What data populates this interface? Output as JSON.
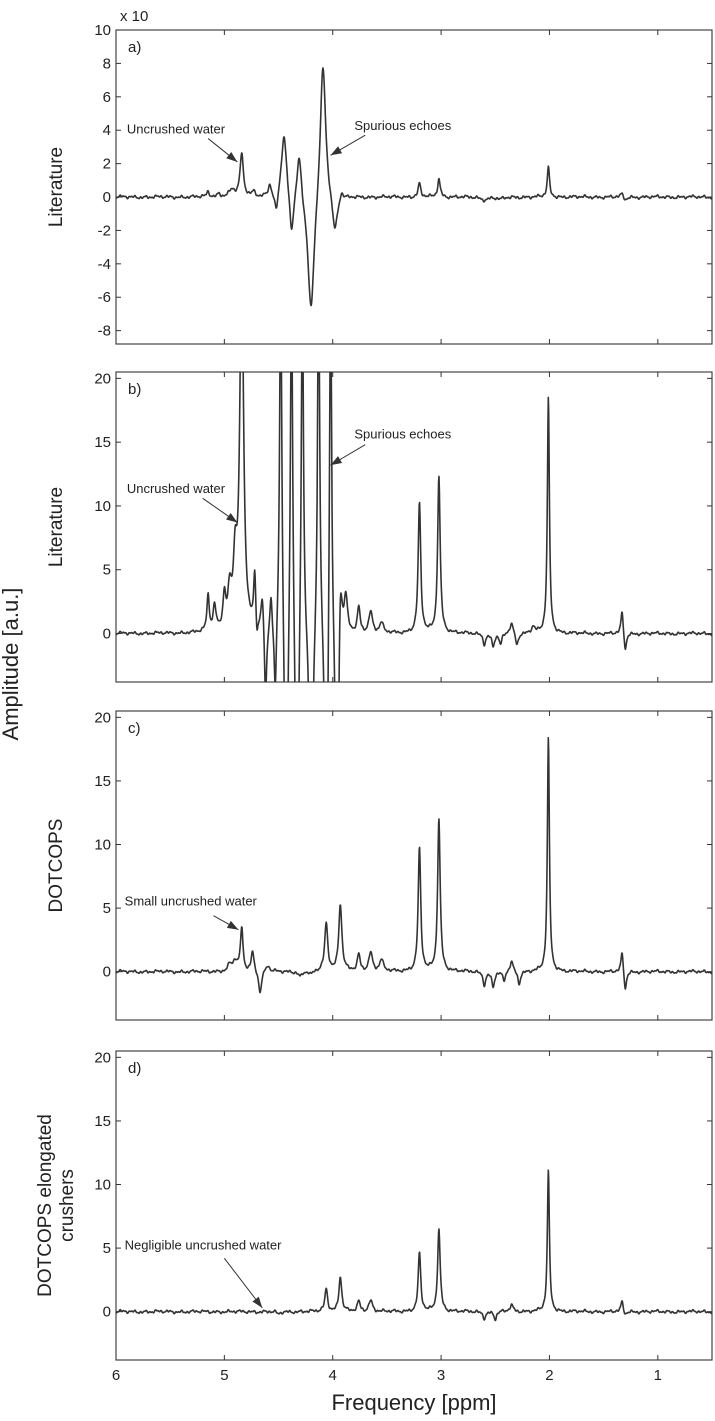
{
  "chart_data": {
    "type": "line",
    "xlabel": "Frequency [ppm]",
    "ylabel": "Amplitude [a.u.]",
    "x_reversed": true,
    "xlim": [
      6,
      0.5
    ],
    "xticks": [
      6,
      5,
      4,
      3,
      2,
      1
    ],
    "colors": {
      "trace": "#333333",
      "axes": "#333333"
    },
    "panels": [
      {
        "label": "a)",
        "ylabel": [
          "Literature"
        ],
        "ylim": [
          -8.8,
          10
        ],
        "yticks": [
          -8,
          -6,
          -4,
          -2,
          0,
          2,
          4,
          6,
          8,
          10
        ],
        "multiplier": "x 10",
        "peaks": [
          {
            "x": 5.15,
            "h": 0.3,
            "w": 0.015
          },
          {
            "x": 5.05,
            "h": 0.2,
            "w": 0.015
          },
          {
            "x": 4.84,
            "h": 2.6,
            "w": 0.018
          },
          {
            "x": 4.93,
            "h": 0.4,
            "w": 0.03
          },
          {
            "x": 4.73,
            "h": 0.3,
            "w": 0.02
          },
          {
            "x": 4.58,
            "h": 0.7,
            "w": 0.018
          },
          {
            "x": 4.52,
            "h": -1.3,
            "w": 0.02
          },
          {
            "x": 4.45,
            "h": 3.9,
            "w": 0.03
          },
          {
            "x": 4.38,
            "h": -2.6,
            "w": 0.022
          },
          {
            "x": 4.31,
            "h": 2.9,
            "w": 0.025
          },
          {
            "x": 4.2,
            "h": -7.3,
            "w": 0.035
          },
          {
            "x": 4.09,
            "h": 8.5,
            "w": 0.03
          },
          {
            "x": 3.98,
            "h": -2.3,
            "w": 0.03
          },
          {
            "x": 3.92,
            "h": 0.5,
            "w": 0.02
          },
          {
            "x": 3.2,
            "h": 0.8,
            "w": 0.014
          },
          {
            "x": 3.02,
            "h": 1.1,
            "w": 0.014
          },
          {
            "x": 2.01,
            "h": 1.8,
            "w": 0.012
          },
          {
            "x": 1.33,
            "h": 0.2,
            "w": 0.015
          },
          {
            "x": 1.3,
            "h": -0.2,
            "w": 0.015
          },
          {
            "x": 2.6,
            "h": -0.15,
            "w": 0.04
          },
          {
            "x": 2.45,
            "h": -0.12,
            "w": 0.04
          }
        ],
        "annotations": [
          {
            "text": "Uncrushed water",
            "text_at": [
              5.9,
              3.8
            ],
            "arrow_from": [
              5.15,
              3.5
            ],
            "arrow_to": [
              4.88,
              2.1
            ]
          },
          {
            "text": "Spurious echoes",
            "text_at": [
              3.8,
              4.0
            ],
            "arrow_from": [
              3.7,
              3.7
            ],
            "arrow_to": [
              4.02,
              2.5
            ]
          }
        ]
      },
      {
        "label": "b)",
        "ylabel": [
          "Literature"
        ],
        "ylim": [
          -3.8,
          20.5
        ],
        "yticks": [
          0,
          5,
          10,
          15,
          20
        ],
        "multiplier": "",
        "peaks": [
          {
            "x": 4.84,
            "h": 30,
            "w": 0.02
          },
          {
            "x": 4.9,
            "h": 5,
            "w": 0.02
          },
          {
            "x": 4.95,
            "h": 2.8,
            "w": 0.02
          },
          {
            "x": 5.15,
            "h": 2.8,
            "w": 0.013
          },
          {
            "x": 5.0,
            "h": 2.6,
            "w": 0.015
          },
          {
            "x": 5.09,
            "h": 2.0,
            "w": 0.015
          },
          {
            "x": 4.72,
            "h": 4.2,
            "w": 0.012
          },
          {
            "x": 4.65,
            "h": 3.0,
            "w": 0.015
          },
          {
            "x": 4.7,
            "h": -1.5,
            "w": 0.01
          },
          {
            "x": 4.62,
            "h": -6,
            "w": 0.012
          },
          {
            "x": 4.57,
            "h": 3.0,
            "w": 0.012
          },
          {
            "x": 4.53,
            "h": -6,
            "w": 0.012
          },
          {
            "x": 4.48,
            "h": 30,
            "w": 0.012
          },
          {
            "x": 4.43,
            "h": -30,
            "w": 0.012
          },
          {
            "x": 4.38,
            "h": 30,
            "w": 0.012
          },
          {
            "x": 4.33,
            "h": -30,
            "w": 0.012
          },
          {
            "x": 4.28,
            "h": 30,
            "w": 0.012
          },
          {
            "x": 4.2,
            "h": -30,
            "w": 0.012
          },
          {
            "x": 4.13,
            "h": 30,
            "w": 0.012
          },
          {
            "x": 4.06,
            "h": -30,
            "w": 0.012
          },
          {
            "x": 4.02,
            "h": 30,
            "w": 0.012
          },
          {
            "x": 3.96,
            "h": -30,
            "w": 0.012
          },
          {
            "x": 3.93,
            "h": 6.0,
            "w": 0.018
          },
          {
            "x": 3.88,
            "h": 3.0,
            "w": 0.02
          },
          {
            "x": 3.76,
            "h": 2.0,
            "w": 0.015
          },
          {
            "x": 3.65,
            "h": 1.7,
            "w": 0.02
          },
          {
            "x": 3.55,
            "h": 0.8,
            "w": 0.02
          },
          {
            "x": 3.2,
            "h": 10.2,
            "w": 0.014
          },
          {
            "x": 3.02,
            "h": 12.3,
            "w": 0.014
          },
          {
            "x": 2.01,
            "h": 18.5,
            "w": 0.011
          },
          {
            "x": 2.6,
            "h": -0.8,
            "w": 0.015
          },
          {
            "x": 2.52,
            "h": -1.0,
            "w": 0.015
          },
          {
            "x": 2.45,
            "h": -0.9,
            "w": 0.015
          },
          {
            "x": 2.35,
            "h": 0.8,
            "w": 0.02
          },
          {
            "x": 2.3,
            "h": -1.0,
            "w": 0.015
          },
          {
            "x": 2.15,
            "h": 0.5,
            "w": 0.02
          },
          {
            "x": 1.33,
            "h": 1.8,
            "w": 0.012
          },
          {
            "x": 1.3,
            "h": -1.5,
            "w": 0.012
          }
        ],
        "annotations": [
          {
            "text": "Uncrushed water",
            "text_at": [
              5.9,
              11.0
            ],
            "arrow_from": [
              5.2,
              10.6
            ],
            "arrow_to": [
              4.88,
              8.7
            ]
          },
          {
            "text": "Spurious echoes",
            "text_at": [
              3.8,
              15.3
            ],
            "arrow_from": [
              3.7,
              14.8
            ],
            "arrow_to": [
              4.02,
              13.2
            ]
          }
        ]
      },
      {
        "label": "c)",
        "ylabel": [
          "DOTCOPS"
        ],
        "ylim": [
          -3.8,
          20.5
        ],
        "yticks": [
          0,
          5,
          10,
          15,
          20
        ],
        "multiplier": "",
        "peaks": [
          {
            "x": 4.84,
            "h": 3.4,
            "w": 0.014
          },
          {
            "x": 4.9,
            "h": 0.8,
            "w": 0.025
          },
          {
            "x": 4.95,
            "h": 0.5,
            "w": 0.02
          },
          {
            "x": 4.74,
            "h": 1.6,
            "w": 0.015
          },
          {
            "x": 4.67,
            "h": -1.8,
            "w": 0.015
          },
          {
            "x": 4.6,
            "h": 0.5,
            "w": 0.02
          },
          {
            "x": 4.06,
            "h": 3.8,
            "w": 0.017
          },
          {
            "x": 3.93,
            "h": 5.3,
            "w": 0.017
          },
          {
            "x": 3.76,
            "h": 1.3,
            "w": 0.015
          },
          {
            "x": 3.65,
            "h": 1.5,
            "w": 0.02
          },
          {
            "x": 3.55,
            "h": 0.9,
            "w": 0.02
          },
          {
            "x": 3.2,
            "h": 9.7,
            "w": 0.014
          },
          {
            "x": 3.02,
            "h": 12.0,
            "w": 0.014
          },
          {
            "x": 2.01,
            "h": 18.4,
            "w": 0.011
          },
          {
            "x": 2.6,
            "h": -1.0,
            "w": 0.015
          },
          {
            "x": 2.52,
            "h": -1.2,
            "w": 0.015
          },
          {
            "x": 2.42,
            "h": -0.8,
            "w": 0.015
          },
          {
            "x": 2.35,
            "h": 0.8,
            "w": 0.02
          },
          {
            "x": 2.28,
            "h": -1.0,
            "w": 0.015
          },
          {
            "x": 1.33,
            "h": 1.6,
            "w": 0.012
          },
          {
            "x": 1.3,
            "h": -1.6,
            "w": 0.012
          },
          {
            "x": 4.3,
            "h": -0.4,
            "w": 0.02
          },
          {
            "x": 4.2,
            "h": -0.3,
            "w": 0.02
          }
        ],
        "annotations": [
          {
            "text": "Small uncrushed water",
            "text_at": [
              5.92,
              5.2
            ],
            "arrow_from": [
              5.1,
              4.4
            ],
            "arrow_to": [
              4.87,
              3.3
            ]
          }
        ]
      },
      {
        "label": "d)",
        "ylabel": [
          "DOTCOPS elongated",
          "crushers"
        ],
        "ylim": [
          -3.8,
          20.5
        ],
        "yticks": [
          0,
          5,
          10,
          15,
          20
        ],
        "multiplier": "",
        "peaks": [
          {
            "x": 4.06,
            "h": 1.8,
            "w": 0.015
          },
          {
            "x": 3.93,
            "h": 2.8,
            "w": 0.015
          },
          {
            "x": 3.76,
            "h": 0.8,
            "w": 0.015
          },
          {
            "x": 3.65,
            "h": 0.9,
            "w": 0.02
          },
          {
            "x": 3.2,
            "h": 4.6,
            "w": 0.014
          },
          {
            "x": 3.02,
            "h": 6.5,
            "w": 0.014
          },
          {
            "x": 2.01,
            "h": 11.1,
            "w": 0.011
          },
          {
            "x": 2.6,
            "h": -0.5,
            "w": 0.015
          },
          {
            "x": 2.5,
            "h": -0.6,
            "w": 0.015
          },
          {
            "x": 2.35,
            "h": 0.5,
            "w": 0.02
          },
          {
            "x": 1.33,
            "h": 0.8,
            "w": 0.012
          },
          {
            "x": 1.3,
            "h": -0.3,
            "w": 0.012
          },
          {
            "x": 4.5,
            "h": -0.2,
            "w": 0.02
          }
        ],
        "annotations": [
          {
            "text": "Negligible uncrushed water",
            "text_at": [
              5.92,
              4.9
            ],
            "arrow_from": [
              5.0,
              4.2
            ],
            "arrow_to": [
              4.65,
              0.3
            ]
          }
        ]
      }
    ]
  }
}
